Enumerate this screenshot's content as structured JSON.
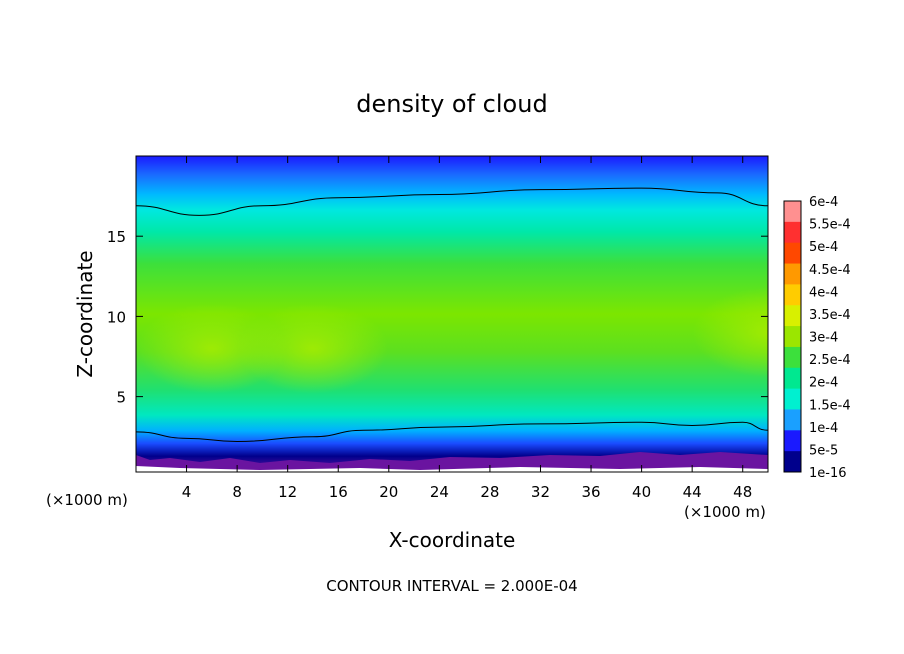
{
  "chart_data": {
    "type": "heatmap",
    "title": "density of cloud",
    "xlabel": "X-coordinate",
    "ylabel": "Z-coordinate",
    "x_unit_left": "(×1000 m)",
    "x_unit_right": "(×1000 m)",
    "xlim": [
      0,
      50
    ],
    "ylim": [
      0.3,
      20
    ],
    "x_ticks": [
      4,
      8,
      12,
      16,
      20,
      24,
      28,
      32,
      36,
      40,
      44,
      48
    ],
    "y_ticks": [
      5,
      10,
      15
    ],
    "footer": "CONTOUR INTERVAL = 2.000E-04",
    "colorbar": {
      "labels": [
        "6e-4",
        "5.5e-4",
        "5e-4",
        "4.5e-4",
        "4e-4",
        "3.5e-4",
        "3e-4",
        "2.5e-4",
        "2e-4",
        "1.5e-4",
        "1e-4",
        "5e-5",
        "1e-16"
      ],
      "levels": [
        0.0006,
        0.00055,
        0.0005,
        0.00045,
        0.0004,
        0.00035,
        0.0003,
        0.00025,
        0.0002,
        0.00015,
        0.0001,
        5e-05,
        1e-16
      ],
      "colors": [
        "#ff9090",
        "#ff3030",
        "#ff4800",
        "#ff9900",
        "#ffcc00",
        "#d8f000",
        "#9be600",
        "#3ce03c",
        "#00e890",
        "#00f0d0",
        "#1aa0ff",
        "#1a1aff",
        "#00008c"
      ]
    },
    "contour_lines": [
      {
        "level": 0.0002,
        "x": [
          0,
          5,
          10,
          16,
          24,
          32,
          40,
          46,
          50
        ],
        "z": [
          16.9,
          16.3,
          16.9,
          17.4,
          17.6,
          17.9,
          18.0,
          17.7,
          16.9
        ]
      },
      {
        "level": 0.0002,
        "x": [
          0,
          4,
          8,
          14,
          18,
          24,
          32,
          40,
          44,
          48,
          50
        ],
        "z": [
          2.8,
          2.4,
          2.2,
          2.5,
          2.9,
          3.1,
          3.3,
          3.4,
          3.2,
          3.4,
          2.9
        ]
      }
    ],
    "field_peak_x": [
      6,
      14,
      50
    ],
    "field_peak_z": [
      8,
      8,
      9
    ],
    "field_peak_value": 0.0004
  }
}
